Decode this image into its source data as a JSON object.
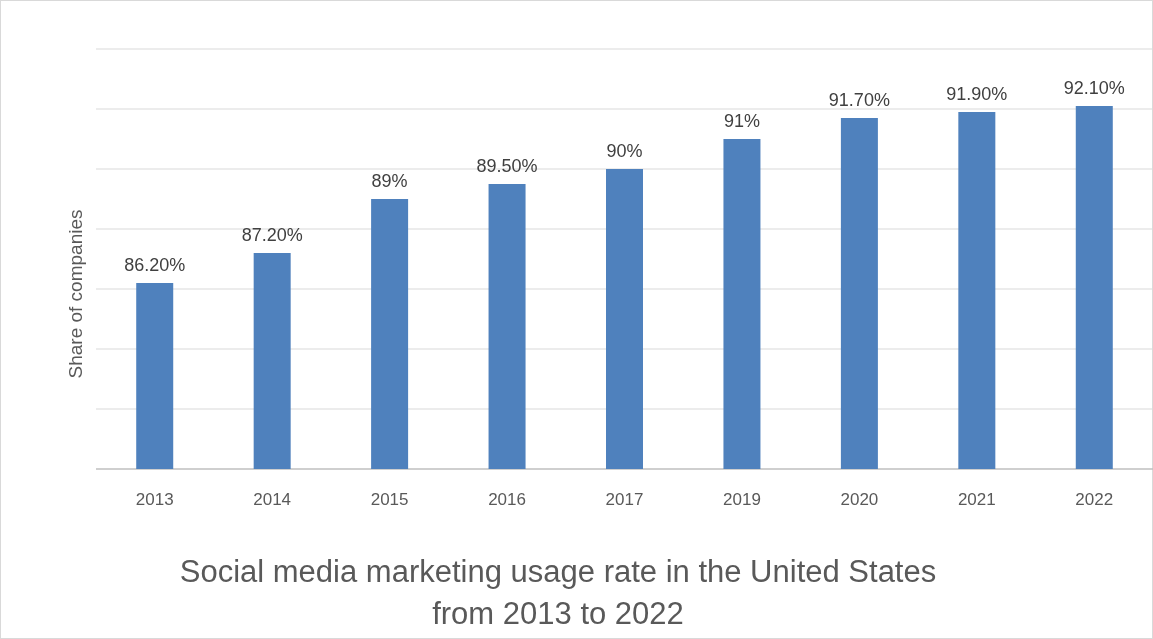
{
  "chart_data": {
    "type": "bar",
    "title": "Social media marketing usage rate in the United States from 2013 to 2022",
    "ylabel": "Share of companies",
    "categories": [
      "2013",
      "2014",
      "2015",
      "2016",
      "2017",
      "2019",
      "2020",
      "2021",
      "2022"
    ],
    "values": [
      86.2,
      87.2,
      89,
      89.5,
      90,
      91,
      91.7,
      91.9,
      92.1
    ],
    "value_labels": [
      "86.20%",
      "87.20%",
      "89%",
      "89.50%",
      "90%",
      "91%",
      "91.70%",
      "91.90%",
      "92.10%"
    ],
    "color": "#4f81bd",
    "ylim": [
      80,
      94
    ],
    "yticks": [
      {
        "value": 80,
        "label": null
      },
      {
        "value": 82,
        "label": null
      },
      {
        "value": 84,
        "label": null
      },
      {
        "value": 86,
        "label": null
      },
      {
        "value": 88,
        "label": null
      },
      {
        "value": 90,
        "label": null
      },
      {
        "value": 92,
        "label": null
      },
      {
        "value": 94,
        "label": null
      }
    ],
    "tick_labels": "x",
    "grid": "y"
  }
}
